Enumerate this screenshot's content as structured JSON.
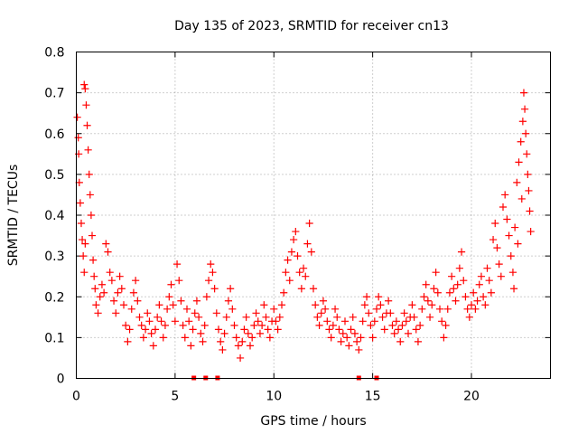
{
  "chart_data": {
    "type": "scatter",
    "title": "Day 135 of 2023, SRMTID for receiver cn13",
    "xlabel": "GPS time / hours",
    "ylabel": "SRMTID / TECUs",
    "xlim": [
      0,
      24
    ],
    "ylim": [
      0,
      0.8
    ],
    "xticks": [
      0,
      5,
      10,
      15,
      20
    ],
    "xtick_labels": [
      "0",
      "5",
      "10",
      "15",
      "20"
    ],
    "yticks": [
      0,
      0.1,
      0.2,
      0.3,
      0.4,
      0.5,
      0.6,
      0.7,
      0.8
    ],
    "ytick_labels": [
      "0",
      "0.1",
      "0.2",
      "0.3",
      "0.4",
      "0.5",
      "0.6",
      "0.7",
      "0.8"
    ],
    "grid": true,
    "marker": "+",
    "color": "#ff0000",
    "series": [
      {
        "name": "SRMTID",
        "points": [
          [
            0.05,
            0.64
          ],
          [
            0.1,
            0.59
          ],
          [
            0.12,
            0.55
          ],
          [
            0.15,
            0.48
          ],
          [
            0.2,
            0.43
          ],
          [
            0.25,
            0.38
          ],
          [
            0.3,
            0.34
          ],
          [
            0.35,
            0.3
          ],
          [
            0.4,
            0.26
          ],
          [
            0.45,
            0.33
          ],
          [
            0.4,
            0.72
          ],
          [
            0.45,
            0.71
          ],
          [
            0.5,
            0.67
          ],
          [
            0.55,
            0.62
          ],
          [
            0.6,
            0.56
          ],
          [
            0.65,
            0.5
          ],
          [
            0.7,
            0.45
          ],
          [
            0.75,
            0.4
          ],
          [
            0.8,
            0.35
          ],
          [
            0.85,
            0.29
          ],
          [
            0.9,
            0.25
          ],
          [
            0.95,
            0.22
          ],
          [
            1.0,
            0.18
          ],
          [
            1.1,
            0.16
          ],
          [
            1.2,
            0.2
          ],
          [
            1.3,
            0.23
          ],
          [
            1.4,
            0.21
          ],
          [
            1.5,
            0.33
          ],
          [
            1.6,
            0.31
          ],
          [
            1.7,
            0.26
          ],
          [
            1.8,
            0.24
          ],
          [
            1.9,
            0.19
          ],
          [
            2.0,
            0.16
          ],
          [
            2.1,
            0.21
          ],
          [
            2.2,
            0.25
          ],
          [
            2.3,
            0.22
          ],
          [
            2.4,
            0.18
          ],
          [
            2.5,
            0.13
          ],
          [
            2.6,
            0.09
          ],
          [
            2.7,
            0.12
          ],
          [
            2.8,
            0.17
          ],
          [
            2.9,
            0.21
          ],
          [
            3.0,
            0.24
          ],
          [
            3.1,
            0.19
          ],
          [
            3.2,
            0.15
          ],
          [
            3.3,
            0.13
          ],
          [
            3.4,
            0.1
          ],
          [
            3.5,
            0.12
          ],
          [
            3.6,
            0.16
          ],
          [
            3.7,
            0.14
          ],
          [
            3.8,
            0.11
          ],
          [
            3.9,
            0.08
          ],
          [
            4.0,
            0.12
          ],
          [
            4.1,
            0.15
          ],
          [
            4.2,
            0.18
          ],
          [
            4.3,
            0.14
          ],
          [
            4.4,
            0.1
          ],
          [
            4.5,
            0.13
          ],
          [
            4.6,
            0.17
          ],
          [
            4.7,
            0.2
          ],
          [
            4.8,
            0.23
          ],
          [
            4.9,
            0.18
          ],
          [
            5.0,
            0.14
          ],
          [
            5.1,
            0.28
          ],
          [
            5.2,
            0.24
          ],
          [
            5.3,
            0.19
          ],
          [
            5.4,
            0.13
          ],
          [
            5.5,
            0.1
          ],
          [
            5.6,
            0.17
          ],
          [
            5.7,
            0.14
          ],
          [
            5.8,
            0.08
          ],
          [
            5.9,
            0.12
          ],
          [
            6.0,
            0.16
          ],
          [
            6.1,
            0.19
          ],
          [
            6.2,
            0.15
          ],
          [
            6.3,
            0.11
          ],
          [
            6.4,
            0.09
          ],
          [
            6.5,
            0.13
          ],
          [
            6.6,
            0.2
          ],
          [
            6.7,
            0.24
          ],
          [
            6.8,
            0.28
          ],
          [
            6.9,
            0.26
          ],
          [
            7.0,
            0.22
          ],
          [
            7.1,
            0.16
          ],
          [
            7.2,
            0.12
          ],
          [
            7.3,
            0.09
          ],
          [
            7.4,
            0.07
          ],
          [
            7.5,
            0.11
          ],
          [
            7.6,
            0.15
          ],
          [
            7.7,
            0.19
          ],
          [
            7.8,
            0.22
          ],
          [
            7.9,
            0.17
          ],
          [
            8.0,
            0.13
          ],
          [
            8.1,
            0.1
          ],
          [
            8.2,
            0.08
          ],
          [
            8.3,
            0.05
          ],
          [
            8.4,
            0.09
          ],
          [
            8.5,
            0.12
          ],
          [
            8.6,
            0.15
          ],
          [
            8.7,
            0.11
          ],
          [
            8.8,
            0.08
          ],
          [
            8.9,
            0.1
          ],
          [
            9.0,
            0.13
          ],
          [
            9.1,
            0.16
          ],
          [
            9.2,
            0.14
          ],
          [
            9.3,
            0.11
          ],
          [
            9.4,
            0.13
          ],
          [
            9.5,
            0.18
          ],
          [
            9.6,
            0.15
          ],
          [
            9.7,
            0.12
          ],
          [
            9.8,
            0.1
          ],
          [
            9.9,
            0.14
          ],
          [
            10.0,
            0.17
          ],
          [
            10.1,
            0.14
          ],
          [
            10.2,
            0.12
          ],
          [
            10.3,
            0.15
          ],
          [
            10.4,
            0.18
          ],
          [
            10.5,
            0.21
          ],
          [
            10.6,
            0.26
          ],
          [
            10.7,
            0.29
          ],
          [
            10.8,
            0.24
          ],
          [
            10.9,
            0.31
          ],
          [
            11.0,
            0.34
          ],
          [
            11.1,
            0.36
          ],
          [
            11.2,
            0.3
          ],
          [
            11.3,
            0.26
          ],
          [
            11.4,
            0.22
          ],
          [
            11.5,
            0.27
          ],
          [
            11.6,
            0.25
          ],
          [
            11.7,
            0.33
          ],
          [
            11.8,
            0.38
          ],
          [
            11.9,
            0.31
          ],
          [
            12.0,
            0.22
          ],
          [
            12.1,
            0.18
          ],
          [
            12.2,
            0.15
          ],
          [
            12.3,
            0.13
          ],
          [
            12.4,
            0.16
          ],
          [
            12.5,
            0.19
          ],
          [
            12.6,
            0.17
          ],
          [
            12.7,
            0.14
          ],
          [
            12.8,
            0.12
          ],
          [
            12.9,
            0.1
          ],
          [
            13.0,
            0.13
          ],
          [
            13.1,
            0.17
          ],
          [
            13.2,
            0.15
          ],
          [
            13.3,
            0.12
          ],
          [
            13.4,
            0.09
          ],
          [
            13.5,
            0.11
          ],
          [
            13.6,
            0.14
          ],
          [
            13.7,
            0.1
          ],
          [
            13.8,
            0.08
          ],
          [
            13.9,
            0.12
          ],
          [
            14.0,
            0.15
          ],
          [
            14.1,
            0.11
          ],
          [
            14.2,
            0.09
          ],
          [
            14.3,
            0.07
          ],
          [
            14.4,
            0.1
          ],
          [
            14.5,
            0.14
          ],
          [
            14.6,
            0.18
          ],
          [
            14.7,
            0.2
          ],
          [
            14.8,
            0.16
          ],
          [
            14.9,
            0.13
          ],
          [
            15.0,
            0.1
          ],
          [
            15.1,
            0.14
          ],
          [
            15.2,
            0.17
          ],
          [
            15.3,
            0.2
          ],
          [
            15.4,
            0.18
          ],
          [
            15.5,
            0.15
          ],
          [
            15.6,
            0.12
          ],
          [
            15.7,
            0.16
          ],
          [
            15.8,
            0.19
          ],
          [
            15.9,
            0.16
          ],
          [
            16.0,
            0.13
          ],
          [
            16.1,
            0.11
          ],
          [
            16.2,
            0.14
          ],
          [
            16.3,
            0.12
          ],
          [
            16.4,
            0.09
          ],
          [
            16.5,
            0.13
          ],
          [
            16.6,
            0.16
          ],
          [
            16.7,
            0.14
          ],
          [
            16.8,
            0.11
          ],
          [
            16.9,
            0.15
          ],
          [
            17.0,
            0.18
          ],
          [
            17.1,
            0.15
          ],
          [
            17.2,
            0.12
          ],
          [
            17.3,
            0.09
          ],
          [
            17.4,
            0.13
          ],
          [
            17.5,
            0.17
          ],
          [
            17.6,
            0.2
          ],
          [
            17.7,
            0.23
          ],
          [
            17.8,
            0.19
          ],
          [
            17.9,
            0.15
          ],
          [
            18.0,
            0.18
          ],
          [
            18.1,
            0.22
          ],
          [
            18.2,
            0.26
          ],
          [
            18.3,
            0.21
          ],
          [
            18.4,
            0.17
          ],
          [
            18.5,
            0.14
          ],
          [
            18.6,
            0.1
          ],
          [
            18.7,
            0.13
          ],
          [
            18.8,
            0.17
          ],
          [
            18.9,
            0.21
          ],
          [
            19.0,
            0.25
          ],
          [
            19.1,
            0.22
          ],
          [
            19.2,
            0.19
          ],
          [
            19.3,
            0.23
          ],
          [
            19.4,
            0.27
          ],
          [
            19.5,
            0.31
          ],
          [
            19.6,
            0.24
          ],
          [
            19.7,
            0.2
          ],
          [
            19.8,
            0.17
          ],
          [
            19.9,
            0.15
          ],
          [
            20.0,
            0.18
          ],
          [
            20.1,
            0.21
          ],
          [
            20.2,
            0.17
          ],
          [
            20.3,
            0.19
          ],
          [
            20.4,
            0.23
          ],
          [
            20.5,
            0.25
          ],
          [
            20.6,
            0.2
          ],
          [
            20.7,
            0.18
          ],
          [
            20.8,
            0.27
          ],
          [
            20.9,
            0.24
          ],
          [
            21.0,
            0.21
          ],
          [
            21.1,
            0.34
          ],
          [
            21.2,
            0.38
          ],
          [
            21.3,
            0.32
          ],
          [
            21.4,
            0.28
          ],
          [
            21.5,
            0.25
          ],
          [
            21.6,
            0.42
          ],
          [
            21.7,
            0.45
          ],
          [
            21.8,
            0.39
          ],
          [
            21.9,
            0.35
          ],
          [
            22.0,
            0.3
          ],
          [
            22.1,
            0.26
          ],
          [
            22.2,
            0.37
          ],
          [
            22.3,
            0.48
          ],
          [
            22.4,
            0.53
          ],
          [
            22.5,
            0.58
          ],
          [
            22.6,
            0.63
          ],
          [
            22.65,
            0.7
          ],
          [
            22.7,
            0.66
          ],
          [
            22.75,
            0.6
          ],
          [
            22.8,
            0.55
          ],
          [
            22.85,
            0.5
          ],
          [
            22.9,
            0.46
          ],
          [
            22.95,
            0.41
          ],
          [
            23.0,
            0.36
          ],
          [
            22.55,
            0.44
          ],
          [
            22.35,
            0.33
          ],
          [
            22.15,
            0.22
          ]
        ]
      }
    ],
    "gaps": [
      5.95,
      6.55,
      7.15,
      14.3,
      15.2
    ]
  }
}
